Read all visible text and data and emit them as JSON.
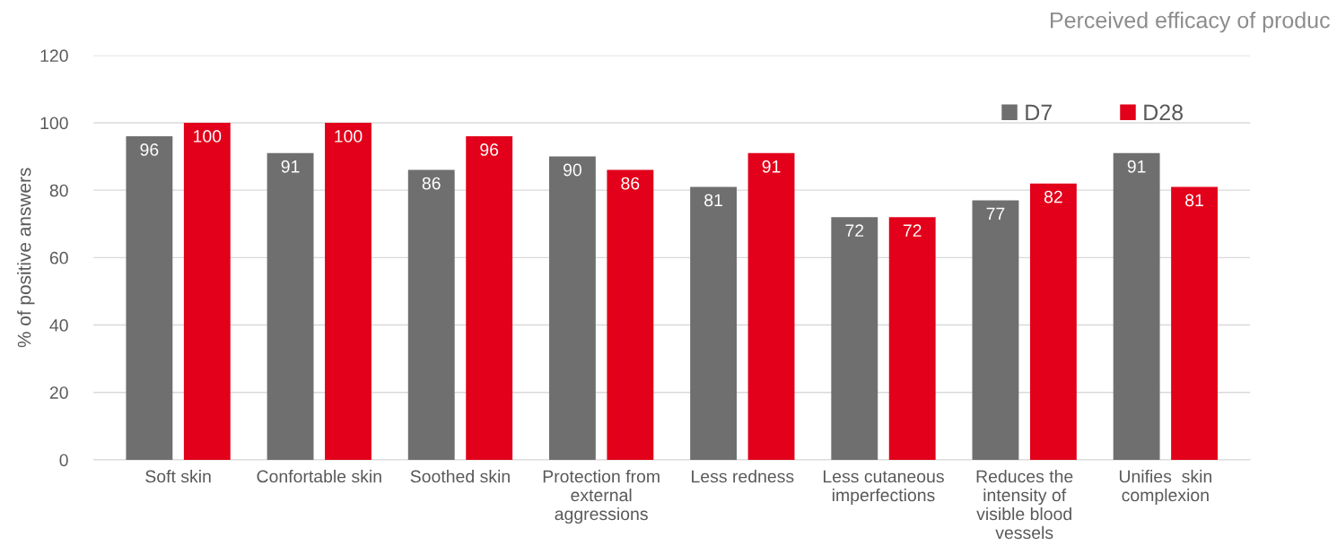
{
  "chart_data": {
    "type": "bar",
    "title": "Perceived efficacy of produc",
    "ylabel": "% of positive answers",
    "categories": [
      "Soft skin",
      "Confortable skin",
      "Soothed skin",
      "Protection from\nexternal\naggressions",
      "Less redness",
      "Less cutaneous\nimperfections",
      "Reduces the\nintensity of\nvisible blood\nvessels",
      "Unifies  skin\ncomplexion"
    ],
    "series": [
      {
        "name": "D7",
        "color": "#6f6f70",
        "values": [
          96,
          91,
          86,
          90,
          81,
          72,
          77,
          91
        ]
      },
      {
        "name": "D28",
        "color": "#e2001a",
        "values": [
          100,
          100,
          96,
          86,
          91,
          72,
          82,
          81
        ]
      }
    ],
    "ylim": [
      0,
      120
    ],
    "yticks": [
      0,
      20,
      40,
      60,
      80,
      100,
      120
    ],
    "grid": "y",
    "legend": "top right",
    "data_labels": true
  }
}
